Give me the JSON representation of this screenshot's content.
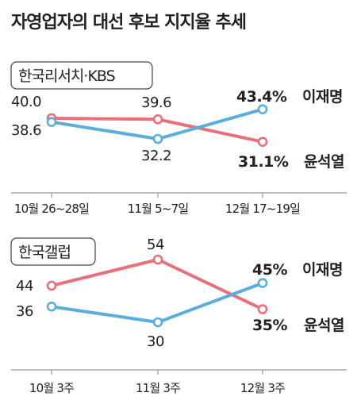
{
  "title": "자영업자의 대선 후보 지지율 추세",
  "colors": {
    "lee": "#5aaedc",
    "yoon": "#e8707a",
    "text": "#222222",
    "axis": "#9a9a9a",
    "box_border": "#444444"
  },
  "chart_data": [
    {
      "type": "line",
      "source": "한국리서치·KBS",
      "categories": [
        "10월 26~28일",
        "11월 5~7일",
        "12월 17~19일"
      ],
      "series": [
        {
          "name": "이재명",
          "color": "#5aaedc",
          "values": [
            38.6,
            32.2,
            43.4
          ],
          "labels": [
            "38.6",
            "32.2",
            "43.4%"
          ]
        },
        {
          "name": "윤석열",
          "color": "#e8707a",
          "values": [
            40.0,
            39.6,
            31.1
          ],
          "labels": [
            "40.0",
            "39.6",
            "31.1%"
          ]
        }
      ],
      "ylim": [
        28,
        46
      ],
      "grid": false,
      "legend": "end-of-line labels"
    },
    {
      "type": "line",
      "source": "한국갤럽",
      "categories": [
        "10월 3주",
        "11월 3주",
        "12월 3주"
      ],
      "series": [
        {
          "name": "이재명",
          "color": "#5aaedc",
          "values": [
            36,
            30,
            45
          ],
          "labels": [
            "36",
            "30",
            "45%"
          ]
        },
        {
          "name": "윤석열",
          "color": "#e8707a",
          "values": [
            44,
            54,
            35
          ],
          "labels": [
            "44",
            "54",
            "35%"
          ]
        }
      ],
      "ylim": [
        28,
        56
      ],
      "grid": false,
      "legend": "end-of-line labels"
    }
  ]
}
